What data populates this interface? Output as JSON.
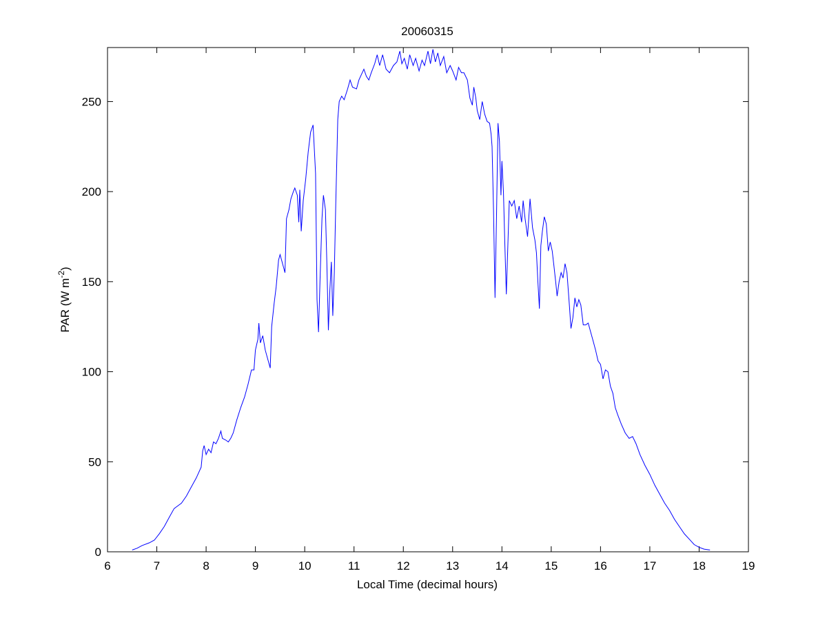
{
  "chart_data": {
    "type": "line",
    "title": "20060315",
    "xlabel": "Local Time (decimal hours)",
    "ylabel": {
      "base": "PAR (W m",
      "superscript": "-2",
      "end": ")"
    },
    "xlim": [
      6,
      19
    ],
    "ylim": [
      0,
      280
    ],
    "xticks": [
      6,
      7,
      8,
      9,
      10,
      11,
      12,
      13,
      14,
      15,
      16,
      17,
      18,
      19
    ],
    "yticks": [
      0,
      50,
      100,
      150,
      200,
      250
    ],
    "grid": false,
    "legend": "none",
    "series": [
      {
        "color": "#0000ff",
        "points": [
          [
            6.5,
            1
          ],
          [
            6.6,
            2
          ],
          [
            6.7,
            3.5
          ],
          [
            6.85,
            5
          ],
          [
            6.95,
            6.5
          ],
          [
            7.05,
            10
          ],
          [
            7.15,
            14
          ],
          [
            7.25,
            19
          ],
          [
            7.35,
            24
          ],
          [
            7.4,
            25
          ],
          [
            7.5,
            27
          ],
          [
            7.6,
            31
          ],
          [
            7.7,
            36
          ],
          [
            7.8,
            41
          ],
          [
            7.9,
            47
          ],
          [
            7.93,
            56
          ],
          [
            7.96,
            59
          ],
          [
            8.0,
            54
          ],
          [
            8.05,
            57
          ],
          [
            8.1,
            55
          ],
          [
            8.15,
            61
          ],
          [
            8.2,
            60
          ],
          [
            8.25,
            63
          ],
          [
            8.3,
            67
          ],
          [
            8.33,
            63
          ],
          [
            8.4,
            62
          ],
          [
            8.45,
            61
          ],
          [
            8.5,
            63
          ],
          [
            8.55,
            66
          ],
          [
            8.62,
            73
          ],
          [
            8.7,
            80
          ],
          [
            8.78,
            86
          ],
          [
            8.85,
            93
          ],
          [
            8.92,
            101
          ],
          [
            8.97,
            101
          ],
          [
            9.0,
            112
          ],
          [
            9.05,
            118
          ],
          [
            9.07,
            127
          ],
          [
            9.1,
            116
          ],
          [
            9.15,
            120
          ],
          [
            9.2,
            112
          ],
          [
            9.25,
            107
          ],
          [
            9.3,
            102
          ],
          [
            9.33,
            125
          ],
          [
            9.38,
            138
          ],
          [
            9.42,
            147
          ],
          [
            9.47,
            162
          ],
          [
            9.5,
            165
          ],
          [
            9.55,
            160
          ],
          [
            9.6,
            155
          ],
          [
            9.63,
            185
          ],
          [
            9.68,
            190
          ],
          [
            9.72,
            196
          ],
          [
            9.77,
            200
          ],
          [
            9.8,
            202
          ],
          [
            9.85,
            198
          ],
          [
            9.88,
            183
          ],
          [
            9.9,
            201
          ],
          [
            9.93,
            178
          ],
          [
            9.97,
            195
          ],
          [
            10.02,
            207
          ],
          [
            10.07,
            222
          ],
          [
            10.12,
            233
          ],
          [
            10.17,
            237
          ],
          [
            10.22,
            210
          ],
          [
            10.25,
            140
          ],
          [
            10.28,
            122
          ],
          [
            10.31,
            150
          ],
          [
            10.35,
            185
          ],
          [
            10.38,
            198
          ],
          [
            10.42,
            190
          ],
          [
            10.45,
            160
          ],
          [
            10.48,
            123
          ],
          [
            10.51,
            145
          ],
          [
            10.54,
            161
          ],
          [
            10.57,
            131
          ],
          [
            10.6,
            155
          ],
          [
            10.63,
            193
          ],
          [
            10.67,
            240
          ],
          [
            10.7,
            250
          ],
          [
            10.75,
            253
          ],
          [
            10.8,
            251
          ],
          [
            10.87,
            257
          ],
          [
            10.92,
            262
          ],
          [
            10.97,
            258
          ],
          [
            11.05,
            257
          ],
          [
            11.1,
            262
          ],
          [
            11.15,
            265
          ],
          [
            11.2,
            268
          ],
          [
            11.25,
            264
          ],
          [
            11.3,
            262
          ],
          [
            11.35,
            266
          ],
          [
            11.42,
            271
          ],
          [
            11.47,
            276
          ],
          [
            11.52,
            270
          ],
          [
            11.58,
            276
          ],
          [
            11.65,
            268
          ],
          [
            11.72,
            266
          ],
          [
            11.8,
            270
          ],
          [
            11.87,
            272
          ],
          [
            11.93,
            278
          ],
          [
            11.97,
            271
          ],
          [
            12.02,
            274
          ],
          [
            12.08,
            268
          ],
          [
            12.13,
            276
          ],
          [
            12.2,
            270
          ],
          [
            12.25,
            274
          ],
          [
            12.32,
            267
          ],
          [
            12.38,
            273
          ],
          [
            12.43,
            270
          ],
          [
            12.5,
            278
          ],
          [
            12.55,
            271
          ],
          [
            12.6,
            279
          ],
          [
            12.65,
            272
          ],
          [
            12.7,
            277
          ],
          [
            12.75,
            270
          ],
          [
            12.82,
            275
          ],
          [
            12.88,
            266
          ],
          [
            12.95,
            270
          ],
          [
            13.0,
            267
          ],
          [
            13.07,
            262
          ],
          [
            13.12,
            269
          ],
          [
            13.18,
            266
          ],
          [
            13.23,
            266
          ],
          [
            13.3,
            262
          ],
          [
            13.35,
            252
          ],
          [
            13.4,
            248
          ],
          [
            13.43,
            258
          ],
          [
            13.47,
            252
          ],
          [
            13.5,
            245
          ],
          [
            13.55,
            240
          ],
          [
            13.6,
            250
          ],
          [
            13.65,
            243
          ],
          [
            13.7,
            239
          ],
          [
            13.75,
            238
          ],
          [
            13.78,
            232
          ],
          [
            13.8,
            225
          ],
          [
            13.83,
            190
          ],
          [
            13.86,
            141
          ],
          [
            13.89,
            185
          ],
          [
            13.92,
            238
          ],
          [
            13.95,
            228
          ],
          [
            13.98,
            198
          ],
          [
            14.0,
            217
          ],
          [
            14.03,
            200
          ],
          [
            14.06,
            170
          ],
          [
            14.09,
            143
          ],
          [
            14.12,
            170
          ],
          [
            14.15,
            195
          ],
          [
            14.2,
            192
          ],
          [
            14.25,
            195
          ],
          [
            14.3,
            185
          ],
          [
            14.35,
            192
          ],
          [
            14.4,
            183
          ],
          [
            14.43,
            195
          ],
          [
            14.47,
            185
          ],
          [
            14.52,
            175
          ],
          [
            14.57,
            196
          ],
          [
            14.62,
            180
          ],
          [
            14.67,
            173
          ],
          [
            14.7,
            166
          ],
          [
            14.73,
            150
          ],
          [
            14.76,
            135
          ],
          [
            14.79,
            170
          ],
          [
            14.82,
            178
          ],
          [
            14.86,
            186
          ],
          [
            14.9,
            182
          ],
          [
            14.94,
            167
          ],
          [
            14.98,
            172
          ],
          [
            15.02,
            167
          ],
          [
            15.05,
            160
          ],
          [
            15.09,
            150
          ],
          [
            15.12,
            142
          ],
          [
            15.16,
            150
          ],
          [
            15.2,
            155
          ],
          [
            15.24,
            152
          ],
          [
            15.28,
            160
          ],
          [
            15.32,
            155
          ],
          [
            15.36,
            140
          ],
          [
            15.4,
            124
          ],
          [
            15.44,
            130
          ],
          [
            15.48,
            141
          ],
          [
            15.52,
            136
          ],
          [
            15.56,
            140
          ],
          [
            15.6,
            137
          ],
          [
            15.65,
            126
          ],
          [
            15.7,
            126
          ],
          [
            15.75,
            127
          ],
          [
            15.8,
            122
          ],
          [
            15.85,
            117
          ],
          [
            15.9,
            112
          ],
          [
            15.95,
            106
          ],
          [
            16.0,
            104
          ],
          [
            16.05,
            96
          ],
          [
            16.1,
            101
          ],
          [
            16.15,
            100
          ],
          [
            16.2,
            92
          ],
          [
            16.25,
            88
          ],
          [
            16.3,
            80
          ],
          [
            16.35,
            76
          ],
          [
            16.42,
            71
          ],
          [
            16.5,
            66
          ],
          [
            16.58,
            63
          ],
          [
            16.65,
            64
          ],
          [
            16.72,
            60
          ],
          [
            16.8,
            54
          ],
          [
            16.9,
            48
          ],
          [
            17.0,
            43
          ],
          [
            17.1,
            37
          ],
          [
            17.2,
            32
          ],
          [
            17.3,
            27
          ],
          [
            17.4,
            23
          ],
          [
            17.5,
            18
          ],
          [
            17.6,
            14
          ],
          [
            17.7,
            10
          ],
          [
            17.8,
            7
          ],
          [
            17.9,
            4
          ],
          [
            18.0,
            2.5
          ],
          [
            18.1,
            1.5
          ],
          [
            18.22,
            1
          ]
        ]
      }
    ]
  }
}
